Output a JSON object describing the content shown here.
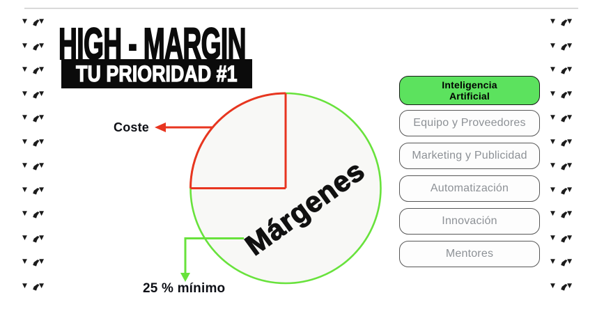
{
  "header": {
    "title": "HIGH - MARGIN",
    "subtitle": "TU PRIORIDAD #1"
  },
  "diagram": {
    "cost_label": "Coste",
    "margin_label": "Márgenes",
    "minimum_label": "25 % mínimo"
  },
  "chart_data": {
    "type": "pie",
    "title": "HIGH - MARGIN — TU PRIORIDAD #1",
    "slices": [
      {
        "label": "Coste",
        "value": 25,
        "outline_color": "#e83520"
      },
      {
        "label": "Márgenes",
        "value": 75,
        "outline_color": "#68e23c"
      }
    ],
    "annotations": [
      {
        "text": "Coste",
        "points_to": "25% quadrant",
        "arrow_color": "#e83520"
      },
      {
        "text": "25 % mínimo",
        "points_to": "Márgenes slice",
        "arrow_color": "#68e23c"
      }
    ],
    "legend_position": "none",
    "fill": "#f8f8f6"
  },
  "sidebar": {
    "items": [
      {
        "label": "Inteligencia Artificial",
        "active": true
      },
      {
        "label": "Equipo y Proveedores",
        "active": false
      },
      {
        "label": "Marketing y Publicidad",
        "active": false
      },
      {
        "label": "Automatización",
        "active": false
      },
      {
        "label": "Innovación",
        "active": false
      },
      {
        "label": "Mentores",
        "active": false
      }
    ]
  },
  "colors": {
    "accent_red": "#e83520",
    "accent_green": "#68e23c",
    "active_pill_green": "#5ce25e",
    "inactive_pill_text": "#8d9196",
    "pill_border": "#565656",
    "title_black": "#0b0b0b",
    "top_rule_gray": "#d9d9d9"
  },
  "decoration": {
    "motif": "triangle-triangle-comma",
    "columns": 2,
    "units_per_column": 12
  }
}
